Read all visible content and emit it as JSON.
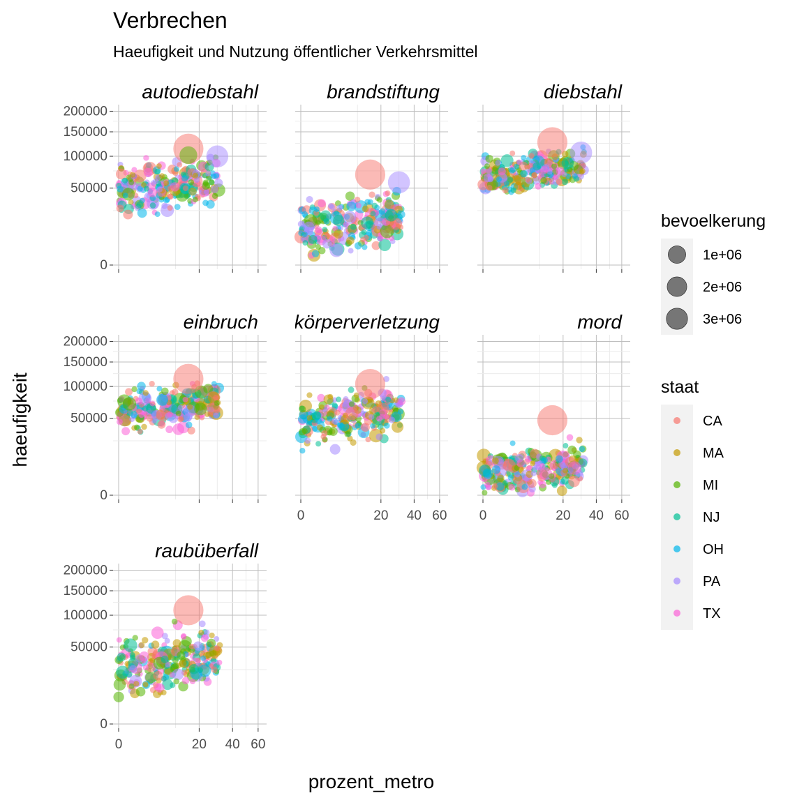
{
  "chart_data": {
    "type": "scatter",
    "title": "Verbrechen",
    "subtitle": "Haeufigkeit und Nutzung öffentlicher Verkehrsmittel",
    "xlabel": "prozent_metro",
    "ylabel": "haeufigkeit",
    "x_scale": "sqrt",
    "y_scale": "sqrt",
    "x_ticks": [
      0,
      20,
      40,
      60
    ],
    "y_ticks": [
      0,
      50000,
      100000,
      150000,
      200000
    ],
    "x_tick_labels": [
      "0",
      "20",
      "40",
      "60"
    ],
    "y_tick_labels": [
      "0",
      "50000",
      "100000",
      "150000",
      "200000"
    ],
    "facets": [
      "autodiebstahl",
      "brandstiftung",
      "diebstahl",
      "einbruch",
      "körperverletzung",
      "mord",
      "raubüberfall"
    ],
    "legend_size": {
      "title": "bevoelkerung",
      "labels": [
        "1e+06",
        "2e+06",
        "3e+06"
      ],
      "values": [
        1000000,
        2000000,
        3000000
      ]
    },
    "legend_color": {
      "title": "staat",
      "labels": [
        "CA",
        "MA",
        "MI",
        "NJ",
        "OH",
        "PA",
        "TX"
      ],
      "colors": [
        "#F8766D",
        "#C49A00",
        "#53B400",
        "#00C094",
        "#00B6EB",
        "#A58AFF",
        "#FB61D7"
      ]
    },
    "highlighted_points": [
      {
        "facet": "autodiebstahl",
        "staat": "CA",
        "prozent_metro": 15,
        "y_rel": 0.9,
        "bevoelkerung": 3800000
      },
      {
        "facet": "autodiebstahl",
        "staat": "PA",
        "prozent_metro": 30,
        "y_rel": 0.84,
        "bevoelkerung": 1500000
      },
      {
        "facet": "autodiebstahl",
        "staat": "MI",
        "prozent_metro": 15,
        "y_rel": 0.85,
        "bevoelkerung": 700000
      },
      {
        "facet": "brandstiftung",
        "staat": "CA",
        "prozent_metro": 15,
        "y_rel": 0.7,
        "bevoelkerung": 3800000
      },
      {
        "facet": "brandstiftung",
        "staat": "PA",
        "prozent_metro": 30,
        "y_rel": 0.64,
        "bevoelkerung": 1500000
      },
      {
        "facet": "diebstahl",
        "staat": "CA",
        "prozent_metro": 15,
        "y_rel": 0.95,
        "bevoelkerung": 3800000
      },
      {
        "facet": "diebstahl",
        "staat": "PA",
        "prozent_metro": 30,
        "y_rel": 0.87,
        "bevoelkerung": 1500000
      },
      {
        "facet": "einbruch",
        "staat": "CA",
        "prozent_metro": 15,
        "y_rel": 0.9,
        "bevoelkerung": 3800000
      },
      {
        "facet": "körperverletzung",
        "staat": "CA",
        "prozent_metro": 15,
        "y_rel": 0.86,
        "bevoelkerung": 3800000
      },
      {
        "facet": "mord",
        "staat": "CA",
        "prozent_metro": 15,
        "y_rel": 0.58,
        "bevoelkerung": 3800000
      },
      {
        "facet": "raubüberfall",
        "staat": "CA",
        "prozent_metro": 15,
        "y_rel": 0.88,
        "bevoelkerung": 3800000
      }
    ]
  }
}
